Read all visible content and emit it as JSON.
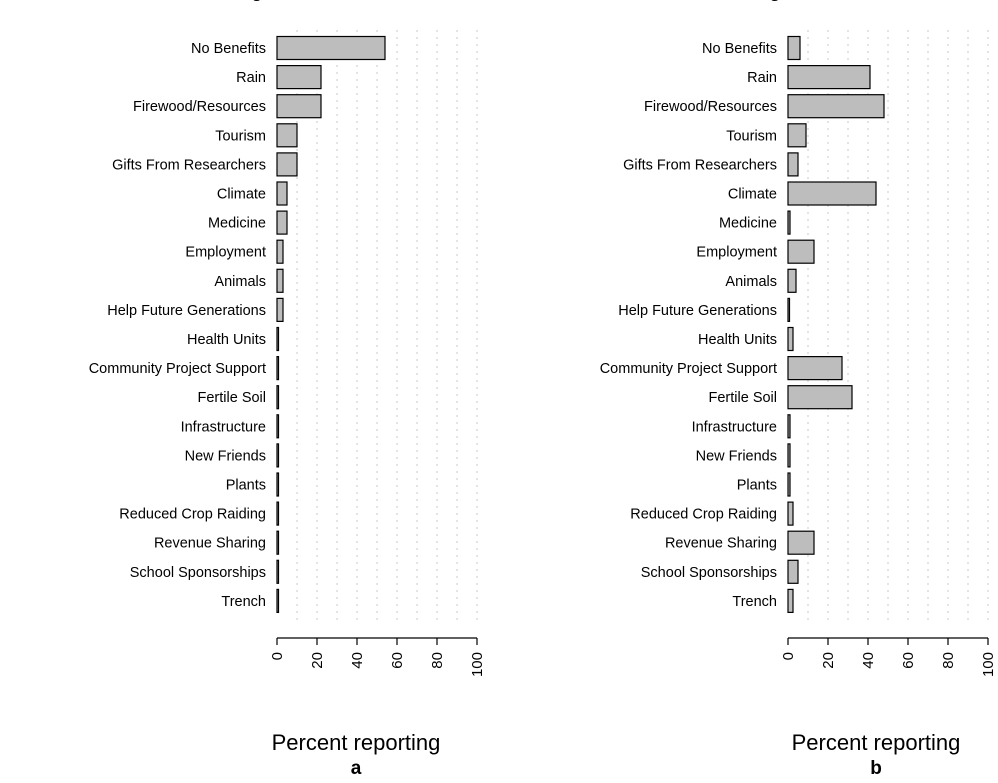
{
  "chart_data": [
    {
      "type": "bar",
      "orientation": "horizontal",
      "panel": "a",
      "xlabel": "Percent reporting",
      "xlim": [
        0,
        100
      ],
      "x_ticks": [
        "0",
        "20",
        "40",
        "60",
        "80",
        "100"
      ],
      "grid": true,
      "categories": [
        "No Benefits",
        "Rain",
        "Firewood/Resources",
        "Tourism",
        "Gifts From Researchers",
        "Climate",
        "Medicine",
        "Employment",
        "Animals",
        "Help Future Generations",
        "Health Units",
        "Community Project Support",
        "Fertile Soil",
        "Infrastructure",
        "New Friends",
        "Plants",
        "Reduced Crop Raiding",
        "Revenue Sharing",
        "School Sponsorships",
        "Trench"
      ],
      "values": [
        54,
        22,
        22,
        10,
        10,
        5,
        5,
        3,
        3,
        3,
        0.5,
        0.5,
        0.5,
        0.5,
        0.5,
        0.5,
        0.5,
        0.5,
        0.5,
        0.5
      ]
    },
    {
      "type": "bar",
      "orientation": "horizontal",
      "panel": "b",
      "xlabel": "Percent reporting",
      "xlim": [
        0,
        100
      ],
      "x_ticks": [
        "0",
        "20",
        "40",
        "60",
        "80",
        "100"
      ],
      "grid": true,
      "categories": [
        "No Benefits",
        "Rain",
        "Firewood/Resources",
        "Tourism",
        "Gifts From Researchers",
        "Climate",
        "Medicine",
        "Employment",
        "Animals",
        "Help Future Generations",
        "Health Units",
        "Community Project Support",
        "Fertile Soil",
        "Infrastructure",
        "New Friends",
        "Plants",
        "Reduced Crop Raiding",
        "Revenue Sharing",
        "School Sponsorships",
        "Trench"
      ],
      "values": [
        6,
        41,
        48,
        9,
        5,
        44,
        1,
        13,
        4,
        0.5,
        2.5,
        27,
        32,
        1,
        1,
        1,
        2.5,
        13,
        5,
        2.5
      ]
    }
  ],
  "top_fragments": [
    "g",
    "g"
  ]
}
